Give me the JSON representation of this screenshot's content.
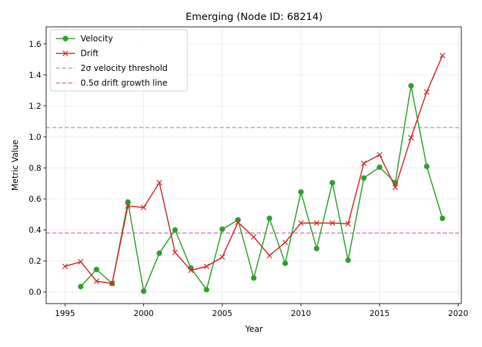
{
  "chart_data": {
    "type": "line",
    "title": "Emerging (Node ID: 68214)",
    "xlabel": "Year",
    "ylabel": "Metric Value",
    "xlim": [
      1993.8,
      2020.2
    ],
    "ylim": [
      -0.075,
      1.71
    ],
    "xticks": [
      1995,
      2000,
      2005,
      2010,
      2015,
      2020
    ],
    "yticks": [
      0.0,
      0.2,
      0.4,
      0.6,
      0.8,
      1.0,
      1.2,
      1.4,
      1.6
    ],
    "grid": true,
    "legend_position": "upper left",
    "series": [
      {
        "name": "Velocity",
        "color": "#2ca02c",
        "marker": "circle",
        "x": [
          1996,
          1997,
          1998,
          1999,
          2000,
          2001,
          2002,
          2003,
          2004,
          2005,
          2006,
          2007,
          2008,
          2009,
          2010,
          2011,
          2012,
          2013,
          2014,
          2015,
          2016,
          2017,
          2018,
          2019
        ],
        "y": [
          0.035,
          0.145,
          0.055,
          0.58,
          0.005,
          0.25,
          0.4,
          0.155,
          0.015,
          0.405,
          0.465,
          0.09,
          0.475,
          0.185,
          0.645,
          0.28,
          0.705,
          0.205,
          0.735,
          0.805,
          0.705,
          1.33,
          0.81,
          0.475
        ]
      },
      {
        "name": "Drift",
        "color": "#d62728",
        "marker": "x",
        "x": [
          1995,
          1996,
          1997,
          1998,
          1999,
          2000,
          2001,
          2002,
          2003,
          2004,
          2005,
          2006,
          2007,
          2008,
          2009,
          2010,
          2011,
          2012,
          2013,
          2014,
          2015,
          2016,
          2017,
          2018,
          2019
        ],
        "y": [
          0.165,
          0.195,
          0.07,
          0.055,
          0.555,
          0.545,
          0.705,
          0.255,
          0.14,
          0.165,
          0.225,
          0.45,
          0.355,
          0.235,
          0.32,
          0.445,
          0.445,
          0.445,
          0.44,
          0.83,
          0.885,
          0.675,
          0.995,
          1.29,
          1.525
        ]
      }
    ],
    "reference_lines": [
      {
        "name": "2σ velocity threshold",
        "y": 1.06,
        "color": "#aaaaaa"
      },
      {
        "name": "0.5σ drift growth line",
        "y": 0.38,
        "color": "#c77cc2"
      }
    ]
  }
}
